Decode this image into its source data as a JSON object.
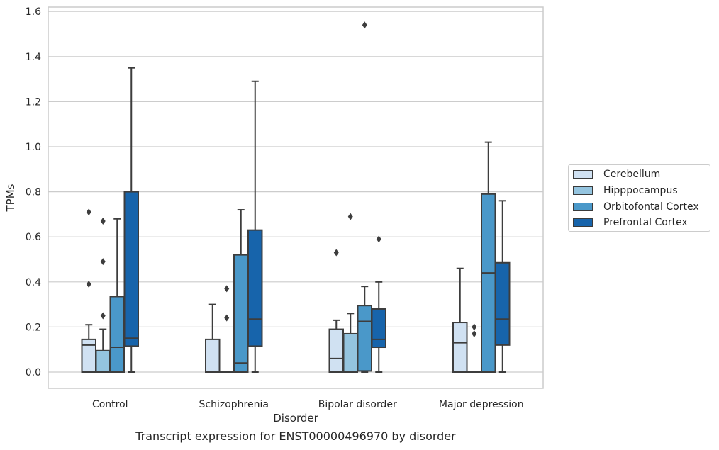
{
  "caption": "Transcript expression for ENST00000496970 by disorder",
  "chart_data": {
    "type": "box",
    "xlabel": "Disorder",
    "ylabel": "TPMs",
    "ylim": [
      -0.075,
      1.62
    ],
    "yticks": [
      "0.0",
      "0.2",
      "0.4",
      "0.6",
      "0.8",
      "1.0",
      "1.2",
      "1.4",
      "1.6"
    ],
    "grid": true,
    "legend_position": "right",
    "categories": [
      "Control",
      "Schizophrenia",
      "Bipolar disorder",
      "Major depression"
    ],
    "series": [
      {
        "name": "Cerebellum",
        "color": "#d0e1f2",
        "boxes": [
          {
            "whislo": 0.0,
            "q1": 0.0,
            "med": 0.12,
            "q3": 0.145,
            "whishi": 0.21,
            "fliers": [
              0.39,
              0.71
            ]
          },
          {
            "whislo": 0.0,
            "q1": 0.0,
            "med": 0.0,
            "q3": 0.145,
            "whishi": 0.3,
            "fliers": []
          },
          {
            "whislo": 0.0,
            "q1": 0.0,
            "med": 0.06,
            "q3": 0.19,
            "whishi": 0.23,
            "fliers": [
              0.53
            ]
          },
          {
            "whislo": 0.0,
            "q1": 0.0,
            "med": 0.13,
            "q3": 0.22,
            "whishi": 0.46,
            "fliers": []
          }
        ]
      },
      {
        "name": "Hipppocampus",
        "color": "#94c4df",
        "boxes": [
          {
            "whislo": 0.0,
            "q1": 0.0,
            "med": 0.0,
            "q3": 0.095,
            "whishi": 0.19,
            "fliers": [
              0.25,
              0.49,
              0.67
            ]
          },
          {
            "whislo": 0.0,
            "q1": 0.0,
            "med": 0.0,
            "q3": 0.0,
            "whishi": 0.0,
            "fliers": [
              0.24,
              0.37
            ]
          },
          {
            "whislo": 0.0,
            "q1": 0.0,
            "med": 0.0,
            "q3": 0.17,
            "whishi": 0.26,
            "fliers": [
              0.69
            ]
          },
          {
            "whislo": 0.0,
            "q1": 0.0,
            "med": 0.0,
            "q3": 0.0,
            "whishi": 0.0,
            "fliers": [
              0.17,
              0.2
            ]
          }
        ]
      },
      {
        "name": "Orbitofontal Cortex",
        "color": "#4a98c9",
        "boxes": [
          {
            "whislo": 0.0,
            "q1": 0.0,
            "med": 0.11,
            "q3": 0.335,
            "whishi": 0.68,
            "fliers": []
          },
          {
            "whislo": 0.0,
            "q1": 0.0,
            "med": 0.04,
            "q3": 0.52,
            "whishi": 0.72,
            "fliers": []
          },
          {
            "whislo": 0.0,
            "q1": 0.005,
            "med": 0.225,
            "q3": 0.295,
            "whishi": 0.38,
            "fliers": [
              1.54
            ]
          },
          {
            "whislo": 0.0,
            "q1": 0.0,
            "med": 0.44,
            "q3": 0.79,
            "whishi": 1.02,
            "fliers": []
          }
        ]
      },
      {
        "name": "Prefrontal Cortex",
        "color": "#1764ab",
        "boxes": [
          {
            "whislo": 0.0,
            "q1": 0.115,
            "med": 0.15,
            "q3": 0.8,
            "whishi": 1.35,
            "fliers": []
          },
          {
            "whislo": 0.0,
            "q1": 0.115,
            "med": 0.235,
            "q3": 0.63,
            "whishi": 1.29,
            "fliers": []
          },
          {
            "whislo": 0.0,
            "q1": 0.11,
            "med": 0.145,
            "q3": 0.28,
            "whishi": 0.4,
            "fliers": [
              0.59
            ]
          },
          {
            "whislo": 0.0,
            "q1": 0.12,
            "med": 0.235,
            "q3": 0.485,
            "whishi": 0.76,
            "fliers": []
          }
        ]
      }
    ]
  }
}
